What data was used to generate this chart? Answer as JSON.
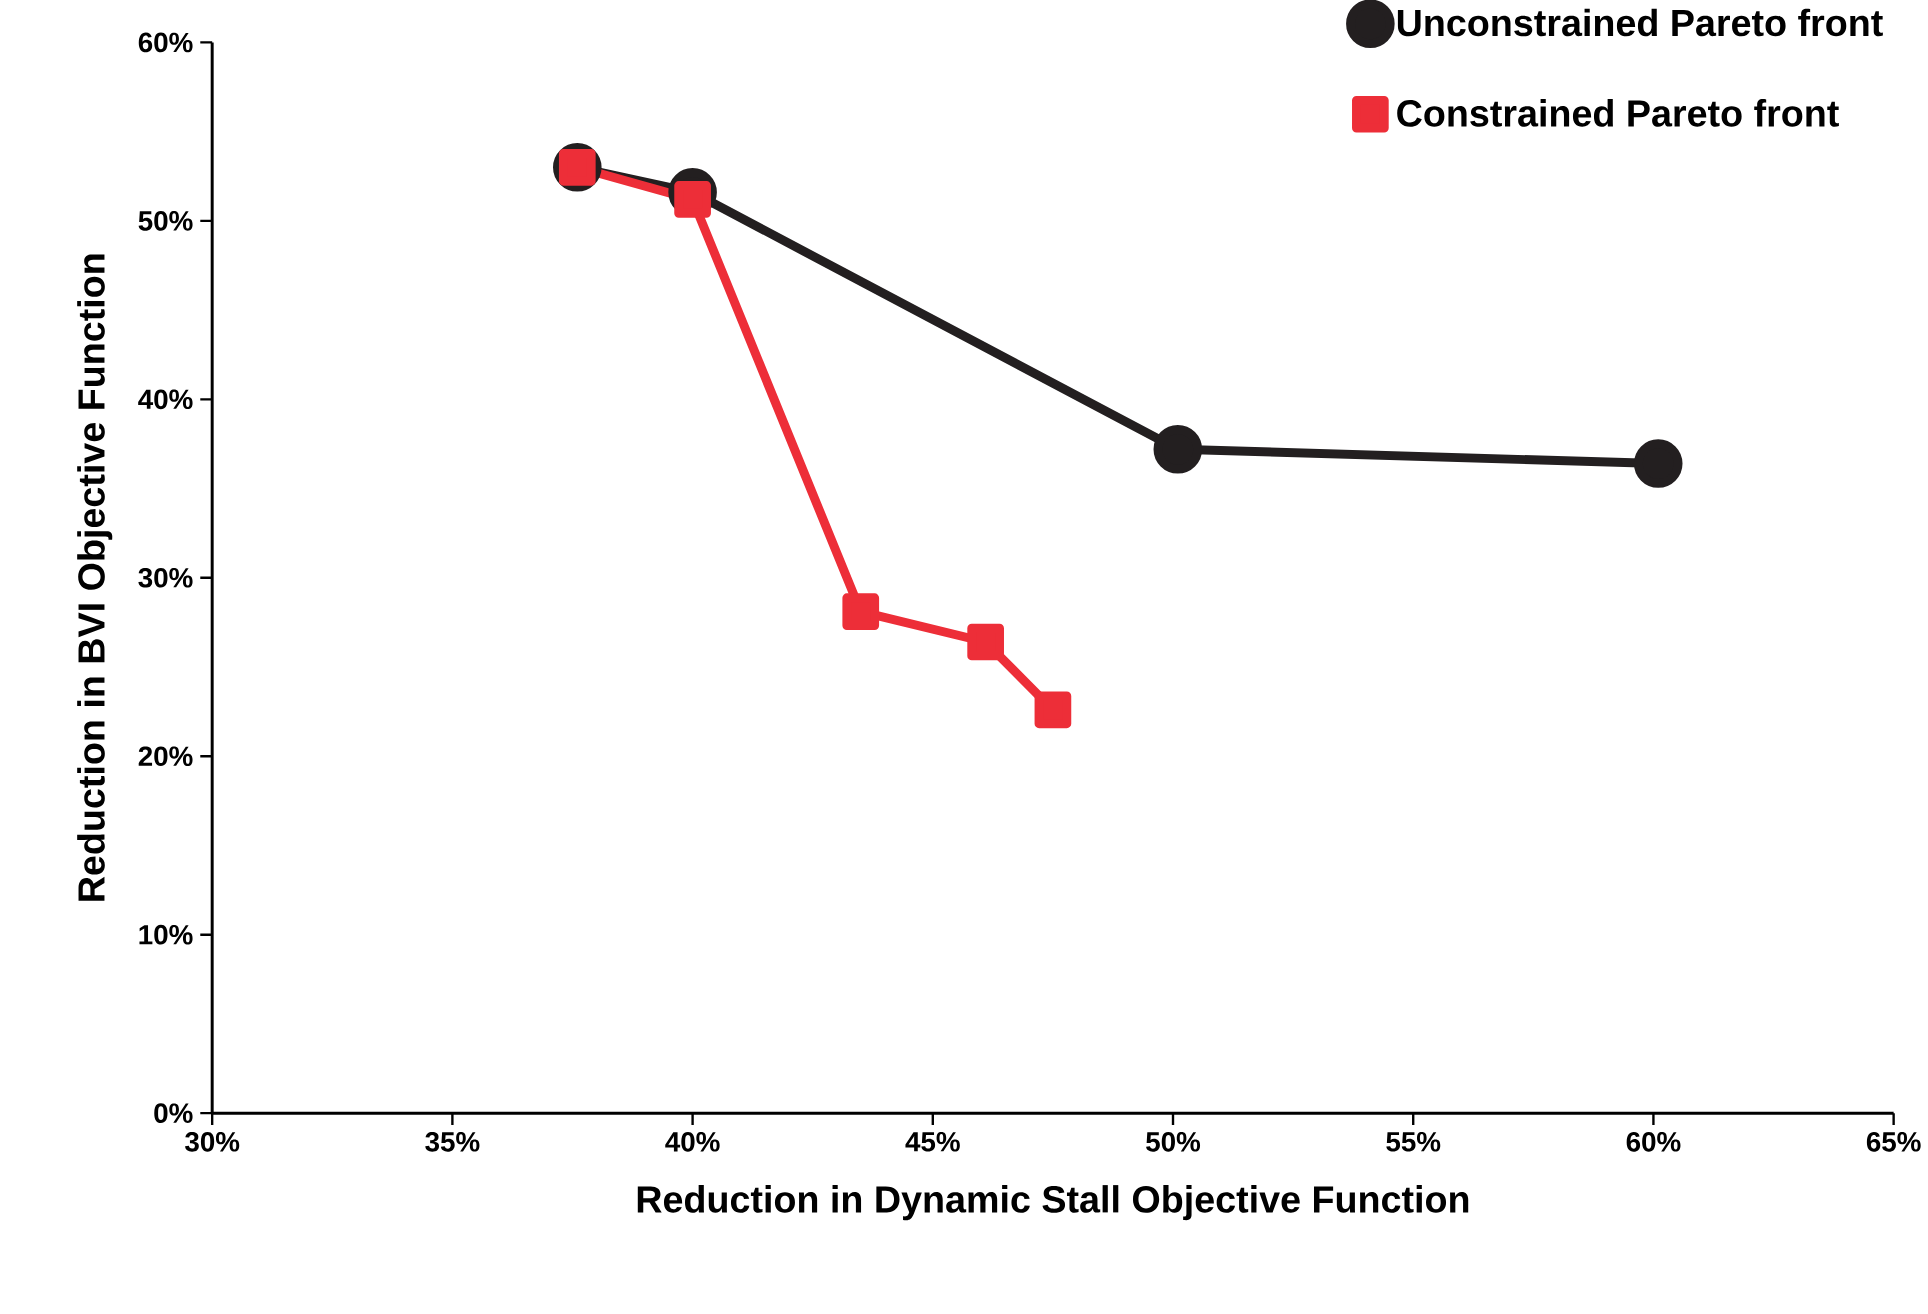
{
  "chart_data": {
    "type": "line",
    "xlabel": "Reduction in Dynamic Stall Objective Function",
    "ylabel": "Reduction in BVI Objective Function",
    "xlim": [
      30,
      65
    ],
    "ylim": [
      0,
      60
    ],
    "xticks": [
      {
        "value": 30,
        "label": "30%"
      },
      {
        "value": 35,
        "label": "35%"
      },
      {
        "value": 40,
        "label": "40%"
      },
      {
        "value": 45,
        "label": "45%"
      },
      {
        "value": 50,
        "label": "50%"
      },
      {
        "value": 55,
        "label": "55%"
      },
      {
        "value": 60,
        "label": "60%"
      },
      {
        "value": 65,
        "label": "65%"
      }
    ],
    "yticks": [
      {
        "value": 0,
        "label": "0%"
      },
      {
        "value": 10,
        "label": "10%"
      },
      {
        "value": 20,
        "label": "20%"
      },
      {
        "value": 30,
        "label": "30%"
      },
      {
        "value": 40,
        "label": "40%"
      },
      {
        "value": 50,
        "label": "50%"
      },
      {
        "value": 60,
        "label": "60%"
      }
    ],
    "grid": false,
    "legend": "top right",
    "line_style": "solid",
    "series": [
      {
        "name": "Unconstrained Pareto front",
        "color": "#231f20",
        "marker": "circle",
        "x": [
          37.6,
          40.0,
          50.1,
          60.1
        ],
        "values": [
          53.0,
          51.6,
          37.2,
          36.4
        ]
      },
      {
        "name": "Constrained Pareto front",
        "color": "#ed2e38",
        "marker": "square",
        "x": [
          37.6,
          40.0,
          43.5,
          46.1,
          47.5
        ],
        "values": [
          53.0,
          51.2,
          28.1,
          26.4,
          22.6
        ]
      }
    ]
  }
}
